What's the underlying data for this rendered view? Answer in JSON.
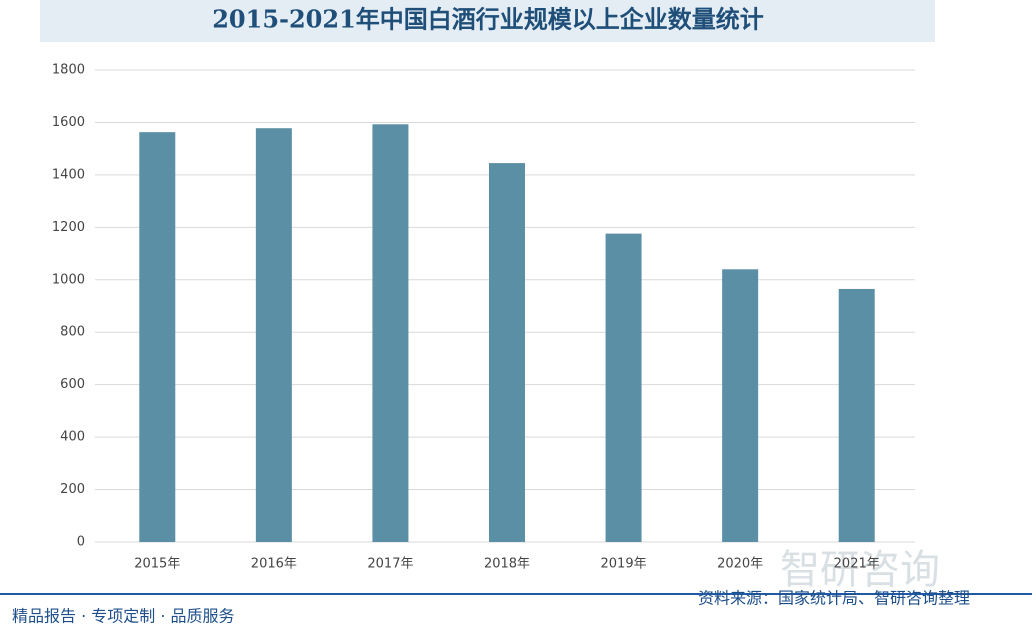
{
  "chart_data": {
    "type": "bar",
    "title": "2015-2021年中国白酒行业规模以上企业数量统计",
    "categories": [
      "2015年",
      "2016年",
      "2017年",
      "2018年",
      "2019年",
      "2020年",
      "2021年"
    ],
    "values": [
      1563,
      1578,
      1593,
      1445,
      1176,
      1040,
      965
    ],
    "color": "#5b8fa5",
    "ylim": [
      0,
      1800
    ],
    "yticks": [
      0,
      200,
      400,
      600,
      800,
      1000,
      1200,
      1400,
      1600,
      1800
    ],
    "grid": true
  },
  "footer": {
    "left": "精品报告 · 专项定制 · 品质服务",
    "source": "资料来源：国家统计局、智研咨询整理",
    "brand": "智研咨询"
  }
}
